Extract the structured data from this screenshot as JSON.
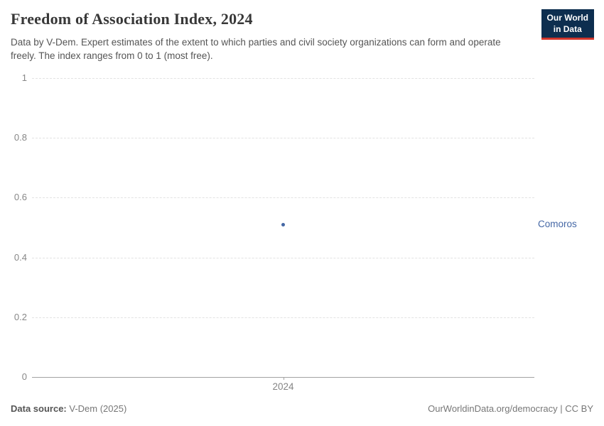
{
  "header": {
    "title": "Freedom of Association Index, 2024",
    "subtitle": "Data by V-Dem. Expert estimates of the extent to which parties and civil society organizations can form and operate freely. The index ranges from 0 to 1 (most free).",
    "logo": {
      "line1": "Our World",
      "line2": "in Data",
      "bg_color": "#0d2e4f",
      "accent_color": "#d1352b"
    }
  },
  "chart_data": {
    "type": "scatter",
    "title": "Freedom of Association Index, 2024",
    "x": [
      2024
    ],
    "xticks": [
      "2024"
    ],
    "series": [
      {
        "name": "Comoros",
        "values": [
          0.51
        ],
        "color": "#4467a5"
      }
    ],
    "xlabel": "",
    "ylabel": "",
    "ylim": [
      0,
      1
    ],
    "yticks": [
      0,
      0.2,
      0.4,
      0.6,
      0.8,
      1
    ],
    "grid": "horizontal-dashed",
    "legend_position": "right-entity-label"
  },
  "footer": {
    "source_label": "Data source:",
    "source_value": "V-Dem (2025)",
    "link": "OurWorldinData.org/democracy | CC BY"
  }
}
